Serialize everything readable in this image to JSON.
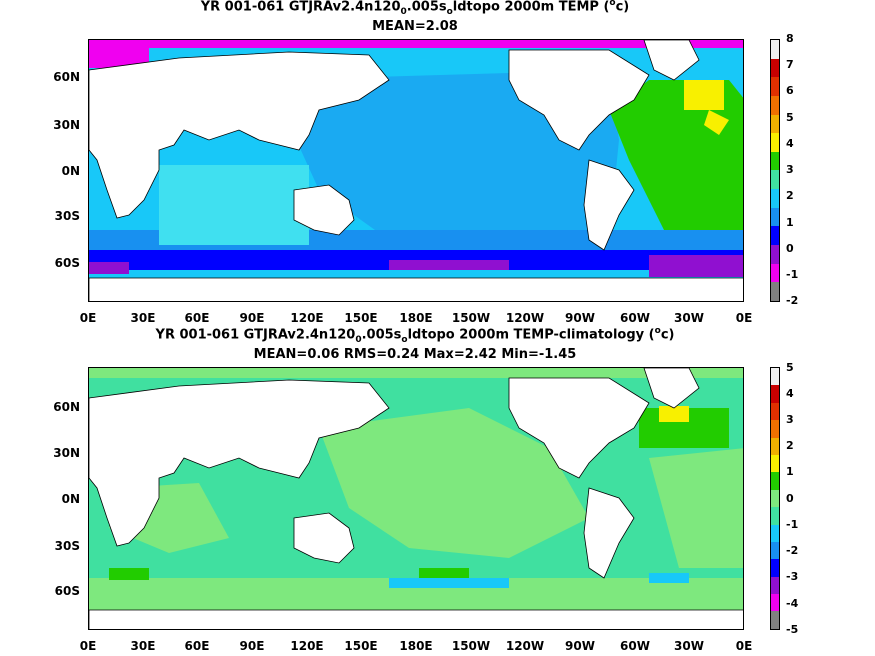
{
  "top": {
    "title_parts": [
      "YR 001-061 GTJRAv2.4n120",
      "0",
      ".005s",
      "o",
      "ldtopo 2000m TEMP (",
      "o",
      "c)"
    ],
    "subtitle": "MEAN=2.08",
    "colorbar": {
      "labels": [
        "8",
        "7",
        "6",
        "5",
        "4",
        "3",
        "2",
        "1",
        "0",
        "-1",
        "-2"
      ],
      "colors": [
        "#f0f0f0",
        "#c80000",
        "#e03000",
        "#f07000",
        "#f0b000",
        "#f8f000",
        "#22cc00",
        "#40e0a0",
        "#18c8f8",
        "#1890f0",
        "#0000ff",
        "#9010d0",
        "#f000f0",
        "#808080"
      ]
    }
  },
  "bottom": {
    "title_parts": [
      "YR 001-061 GTJRAv2.4n120",
      "0",
      ".005s",
      "o",
      "ldtopo 2000m TEMP-climatology (",
      "o",
      "c)"
    ],
    "subtitle": "MEAN=0.06   RMS=0.24   Max=2.42   Min=-1.45",
    "colorbar": {
      "labels": [
        "5",
        "4",
        "3",
        "2",
        "1",
        "0",
        "-1",
        "-2",
        "-3",
        "-4",
        "-5"
      ],
      "colors": [
        "#f0f0f0",
        "#c80000",
        "#e03000",
        "#f07000",
        "#f0b000",
        "#f8f000",
        "#22cc00",
        "#7ee87e",
        "#40e0a0",
        "#18c8f8",
        "#1890f0",
        "#0000ff",
        "#9010d0",
        "#f000f0",
        "#808080"
      ]
    }
  },
  "axes": {
    "lat_labels": [
      "60N",
      "30N",
      "0N",
      "30S",
      "60S"
    ],
    "lon_labels": [
      "0E",
      "30E",
      "60E",
      "90E",
      "120E",
      "150E",
      "180E",
      "150W",
      "120W",
      "90W",
      "60W",
      "30W",
      "0E"
    ]
  }
}
